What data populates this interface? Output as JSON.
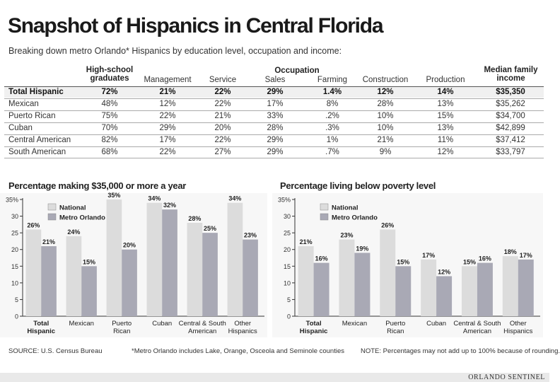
{
  "title": "Snapshot of Hispanics in Central Florida",
  "subtitle": "Breaking down metro Orlando* Hispanics by education level, occupation and income:",
  "table": {
    "hs_header": "High-school graduates",
    "occupation_header": "Occupation",
    "income_header": "Median family income",
    "occupation_columns": [
      "Management",
      "Service",
      "Sales",
      "Farming",
      "Construction",
      "Production"
    ],
    "rows": [
      {
        "group": "Total Hispanic",
        "hs": "72%",
        "occ": [
          "21%",
          "22%",
          "29%",
          "1.4%",
          "12%",
          "14%"
        ],
        "income": "$35,350"
      },
      {
        "group": "Mexican",
        "hs": "48%",
        "occ": [
          "12%",
          "22%",
          "17%",
          "8%",
          "28%",
          "13%"
        ],
        "income": "$35,262"
      },
      {
        "group": "Puerto Rican",
        "hs": "75%",
        "occ": [
          "22%",
          "21%",
          "33%",
          ".2%",
          "10%",
          "15%"
        ],
        "income": "$34,700"
      },
      {
        "group": "Cuban",
        "hs": "70%",
        "occ": [
          "29%",
          "20%",
          "28%",
          ".3%",
          "10%",
          "13%"
        ],
        "income": "$42,899"
      },
      {
        "group": "Central American",
        "hs": "82%",
        "occ": [
          "17%",
          "22%",
          "29%",
          "1%",
          "21%",
          "11%"
        ],
        "income": "$37,412"
      },
      {
        "group": "South American",
        "hs": "68%",
        "occ": [
          "22%",
          "27%",
          "29%",
          ".7%",
          "9%",
          "12%"
        ],
        "income": "$33,797"
      }
    ]
  },
  "chart_data": [
    {
      "type": "bar",
      "title": "Percentage making $35,000 or more a year",
      "categories": [
        "Total Hispanic",
        "Mexican",
        "Puerto Rican",
        "Cuban",
        "Central & South American",
        "Other Hispanics"
      ],
      "series": [
        {
          "name": "National",
          "values": [
            26,
            24,
            35,
            34,
            28,
            34
          ],
          "labels": [
            "26%",
            "24%",
            "35%",
            "34%",
            "28%",
            "34%"
          ],
          "color": "#dcdcdc"
        },
        {
          "name": "Metro Orlando",
          "values": [
            21,
            15,
            20,
            32,
            25,
            23
          ],
          "labels": [
            "21%",
            "15%",
            "20%",
            "32%",
            "25%",
            "23%"
          ],
          "color": "#a9a9b5"
        }
      ],
      "ylim": [
        0,
        35
      ],
      "yticks": [
        "0",
        "5",
        "10",
        "15",
        "20",
        "25",
        "30",
        "35%"
      ],
      "legend": "top-left",
      "grid": false
    },
    {
      "type": "bar",
      "title": "Percentage living below poverty level",
      "categories": [
        "Total Hispanic",
        "Mexican",
        "Puerto Rican",
        "Cuban",
        "Central & South American",
        "Other Hispanics"
      ],
      "series": [
        {
          "name": "National",
          "values": [
            21,
            23,
            26,
            17,
            15,
            18
          ],
          "labels": [
            "21%",
            "23%",
            "26%",
            "17%",
            "15%",
            "18%"
          ],
          "color": "#dcdcdc"
        },
        {
          "name": "Metro Orlando",
          "values": [
            16,
            19,
            15,
            12,
            16,
            17
          ],
          "labels": [
            "16%",
            "19%",
            "15%",
            "12%",
            "16%",
            "17%"
          ],
          "color": "#a9a9b5"
        }
      ],
      "ylim": [
        0,
        35
      ],
      "yticks": [
        "0",
        "5",
        "10",
        "15",
        "20",
        "25",
        "30",
        "35%"
      ],
      "legend": "top-left",
      "grid": false
    }
  ],
  "footer": {
    "source": "SOURCE: U.S. Census Bureau",
    "note_metro": "*Metro Orlando includes Lake, Orange, Osceola and Seminole counties",
    "note_rounding": "NOTE: Percentages may not add up to 100% because of rounding.",
    "brand": "ORLANDO SENTINEL"
  }
}
